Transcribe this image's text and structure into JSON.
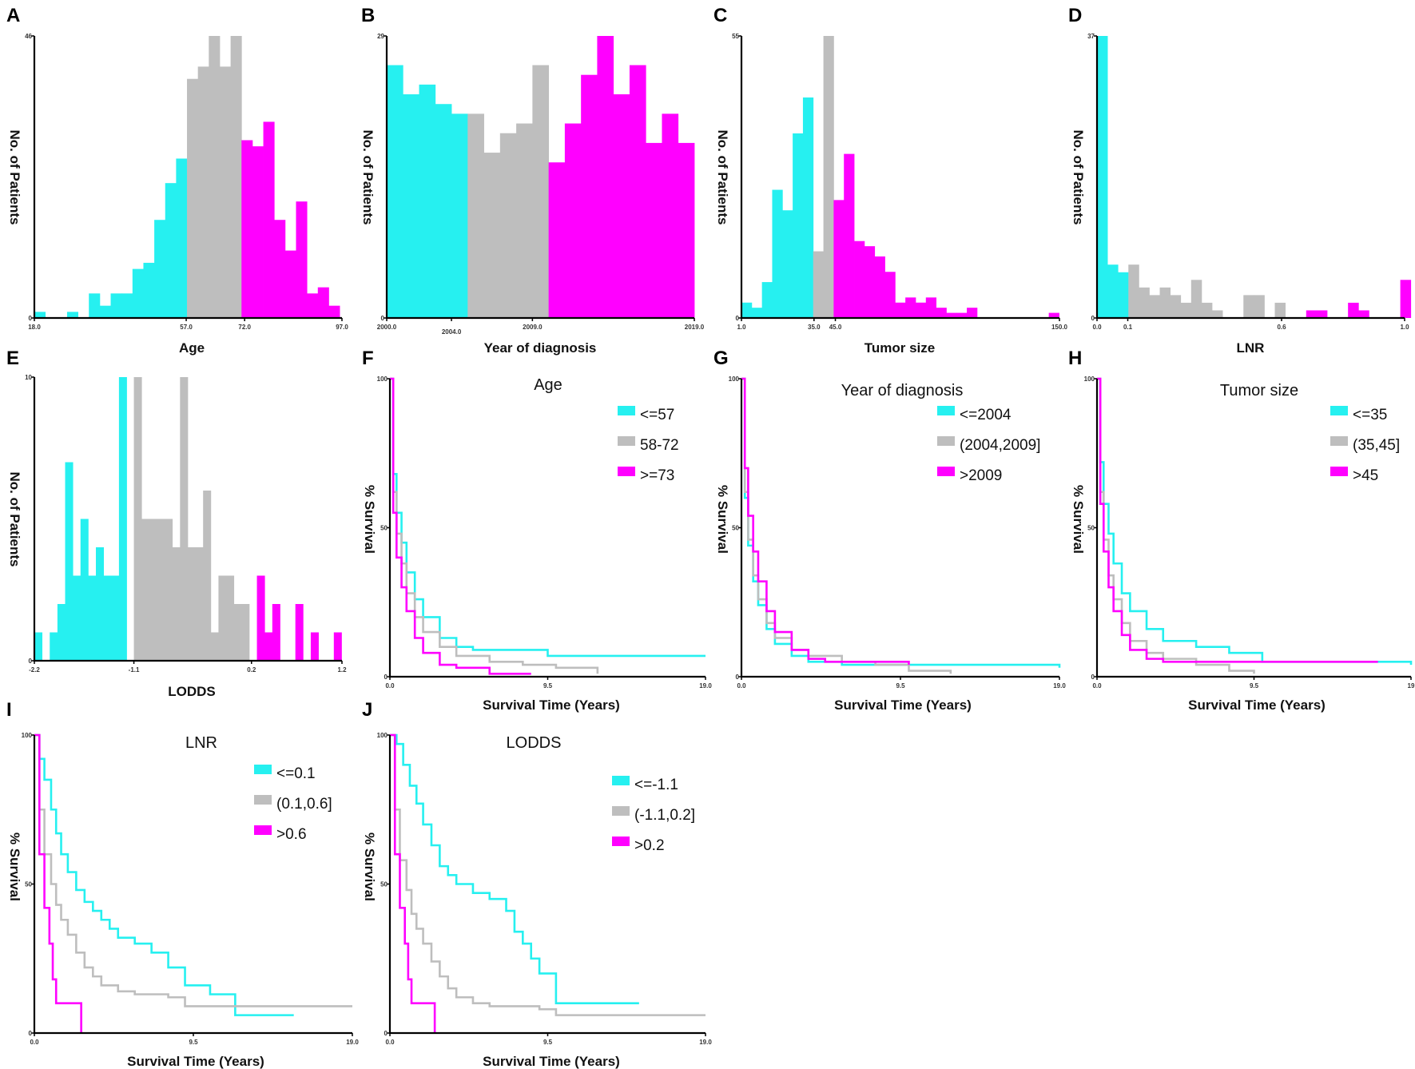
{
  "colors": {
    "group1": "#26F0F0",
    "group2": "#BEBEBE",
    "group3": "#FF00FF",
    "axis": "#000000"
  },
  "chart_data": [
    {
      "type": "bar",
      "panel": "A",
      "xlabel": "Age",
      "ylabel": "No. of Patients",
      "x_ticks": [
        "18.0",
        "57.0",
        "72.0",
        "97.0"
      ],
      "y_ticks": [
        "0",
        "46"
      ],
      "xlim": [
        18,
        97
      ],
      "ylim": [
        0,
        46
      ],
      "bin_width": 2.8,
      "series": [
        {
          "name": "<=57",
          "color_key": "group1",
          "x": [
            18,
            20.8,
            23.6,
            26.4,
            29.2,
            32,
            34.8,
            37.6,
            40.4,
            43.2,
            46,
            48.8,
            51.6,
            54.4
          ],
          "values": [
            1,
            0,
            0,
            1,
            0,
            4,
            2,
            4,
            4,
            8,
            9,
            16,
            22,
            26
          ]
        },
        {
          "name": "58-72",
          "color_key": "group2",
          "x": [
            57.2,
            60,
            62.8,
            65.6,
            68.4
          ],
          "values": [
            39,
            41,
            46,
            41,
            46
          ]
        },
        {
          "name": ">=73",
          "color_key": "group3",
          "x": [
            71.2,
            74,
            76.8,
            79.6,
            82.4,
            85.2,
            88,
            90.8,
            93.6
          ],
          "values": [
            29,
            28,
            32,
            16,
            11,
            19,
            4,
            5,
            2
          ]
        }
      ]
    },
    {
      "type": "bar",
      "panel": "B",
      "xlabel": "Year of diagnosis",
      "ylabel": "No. of Patients",
      "x_ticks": [
        "2000.0",
        "2004.0",
        "2009.0",
        "2019.0"
      ],
      "y_ticks": [
        "0",
        "29"
      ],
      "xlim": [
        2000,
        2019
      ],
      "ylim": [
        0,
        29
      ],
      "bin_width": 1,
      "series": [
        {
          "name": "<=2004",
          "color_key": "group1",
          "x": [
            2000,
            2001,
            2002,
            2003,
            2004
          ],
          "values": [
            26,
            23,
            24,
            22,
            21
          ]
        },
        {
          "name": "(2004,2009]",
          "color_key": "group2",
          "x": [
            2005,
            2006,
            2007,
            2008,
            2009
          ],
          "values": [
            21,
            17,
            19,
            20,
            26
          ]
        },
        {
          "name": ">2009",
          "color_key": "group3",
          "x": [
            2010,
            2011,
            2012,
            2013,
            2014,
            2015,
            2016,
            2017,
            2018
          ],
          "values": [
            16,
            20,
            25,
            29,
            23,
            26,
            18,
            21,
            18
          ]
        }
      ]
    },
    {
      "type": "bar",
      "panel": "C",
      "xlabel": "Tumor size",
      "ylabel": "No. of Patients",
      "x_ticks": [
        "1.0",
        "35.0",
        "45.0",
        "150.0"
      ],
      "y_ticks": [
        "0",
        "55"
      ],
      "xlim": [
        1,
        150
      ],
      "ylim": [
        0,
        55
      ],
      "bin_width": 4.8,
      "series": [
        {
          "name": "<=35",
          "color_key": "group1",
          "x": [
            1,
            5.8,
            10.6,
            15.4,
            20.2,
            25,
            29.8
          ],
          "values": [
            3,
            2,
            7,
            25,
            21,
            36,
            43
          ]
        },
        {
          "name": "(35,45]",
          "color_key": "group2",
          "x": [
            34.6,
            39.4
          ],
          "values": [
            13,
            55
          ]
        },
        {
          "name": ">45",
          "color_key": "group3",
          "x": [
            44.2,
            49,
            53.8,
            58.6,
            63.4,
            68.2,
            73,
            77.8,
            82.6,
            87.4,
            92.2,
            97,
            101.8,
            106.6,
            111.4,
            116.2,
            121,
            125.8,
            130.6,
            135.4,
            140.2,
            145
          ],
          "values": [
            23,
            32,
            15,
            14,
            12,
            9,
            3,
            4,
            3,
            4,
            2,
            1,
            1,
            2,
            0,
            0,
            0,
            0,
            0,
            0,
            0,
            1
          ]
        }
      ]
    },
    {
      "type": "bar",
      "panel": "D",
      "xlabel": "LNR",
      "ylabel": "No. of Patients",
      "x_ticks": [
        "0.0",
        "0.1",
        "0.6",
        "1.0"
      ],
      "y_ticks": [
        "0",
        "37"
      ],
      "xlim": [
        0,
        1
      ],
      "ylim": [
        0,
        37
      ],
      "bin_width": 0.034,
      "series": [
        {
          "name": "<=0.1",
          "color_key": "group1",
          "x": [
            0,
            0.034,
            0.068
          ],
          "values": [
            37,
            7,
            6
          ]
        },
        {
          "name": "(0.1,0.6]",
          "color_key": "group2",
          "x": [
            0.102,
            0.136,
            0.17,
            0.204,
            0.238,
            0.272,
            0.306,
            0.34,
            0.374,
            0.408,
            0.442,
            0.476,
            0.51,
            0.544,
            0.578
          ],
          "values": [
            7,
            4,
            3,
            4,
            3,
            2,
            5,
            2,
            1,
            0,
            0,
            3,
            3,
            0,
            2
          ]
        },
        {
          "name": ">0.6",
          "color_key": "group3",
          "x": [
            0.612,
            0.646,
            0.68,
            0.714,
            0.748,
            0.782,
            0.816,
            0.85,
            0.884,
            0.918,
            0.952,
            0.986
          ],
          "values": [
            0,
            0,
            1,
            1,
            0,
            0,
            2,
            1,
            0,
            0,
            0,
            5
          ]
        }
      ]
    },
    {
      "type": "bar",
      "panel": "E",
      "xlabel": "LODDS",
      "ylabel": "No. of Patients",
      "x_ticks": [
        "-2.2",
        "-1.1",
        "0.2",
        "1.2"
      ],
      "y_ticks": [
        "0",
        "10"
      ],
      "xlim": [
        -2.2,
        1.2
      ],
      "ylim": [
        0,
        10
      ],
      "bin_width": 0.085,
      "series": [
        {
          "name": "<=-1.1",
          "color_key": "group1",
          "x": [
            -2.2,
            -2.115,
            -2.03,
            -1.945,
            -1.86,
            -1.775,
            -1.69,
            -1.605,
            -1.52,
            -1.435,
            -1.35,
            -1.265,
            -1.18
          ],
          "values": [
            1,
            0,
            1,
            2,
            7,
            3,
            5,
            3,
            4,
            3,
            3,
            10,
            0
          ]
        },
        {
          "name": "(-1.1,0.2]",
          "color_key": "group2",
          "x": [
            -1.1,
            -1.015,
            -0.93,
            -0.845,
            -0.76,
            -0.675,
            -0.59,
            -0.505,
            -0.42,
            -0.335,
            -0.25,
            -0.165,
            -0.08,
            0.005,
            0.09,
            0.175
          ],
          "values": [
            10,
            5,
            5,
            5,
            5,
            4,
            10,
            4,
            4,
            6,
            1,
            3,
            3,
            2,
            2,
            0
          ]
        },
        {
          "name": ">0.2",
          "color_key": "group3",
          "x": [
            0.26,
            0.345,
            0.43,
            0.515,
            0.6,
            0.685,
            0.77,
            0.855,
            0.94,
            1.025,
            1.11
          ],
          "values": [
            3,
            1,
            2,
            0,
            0,
            2,
            0,
            1,
            0,
            0,
            1
          ]
        }
      ]
    },
    {
      "type": "line",
      "panel": "F",
      "title": "Age",
      "xlabel": "Survival Time (Years)",
      "ylabel": "% Survival",
      "x_ticks": [
        "0.0",
        "9.5",
        "19.0"
      ],
      "y_ticks": [
        "0",
        "50",
        "100"
      ],
      "xlim": [
        0,
        19
      ],
      "ylim": [
        0,
        100
      ],
      "series": [
        {
          "name": "<=57",
          "color_key": "group1",
          "x": [
            0,
            0.2,
            0.4,
            0.7,
            1,
            1.5,
            2,
            3,
            4,
            5,
            9.5,
            19
          ],
          "y": [
            100,
            68,
            55,
            45,
            35,
            26,
            20,
            13,
            10,
            9,
            7,
            7
          ]
        },
        {
          "name": "58-72",
          "color_key": "group2",
          "x": [
            0,
            0.2,
            0.4,
            0.7,
            1,
            1.5,
            2,
            3,
            4,
            6,
            8,
            10,
            12.5
          ],
          "y": [
            100,
            62,
            48,
            38,
            28,
            20,
            15,
            10,
            7,
            5,
            4,
            3,
            1
          ]
        },
        {
          "name": ">=73",
          "color_key": "group3",
          "x": [
            0,
            0.2,
            0.4,
            0.7,
            1,
            1.5,
            2,
            3,
            4,
            6,
            8.5
          ],
          "y": [
            100,
            55,
            40,
            30,
            22,
            13,
            8,
            4,
            3,
            1,
            1
          ]
        }
      ]
    },
    {
      "type": "line",
      "panel": "G",
      "title": "Year of diagnosis",
      "xlabel": "Survival Time (Years)",
      "ylabel": "% Survival",
      "x_ticks": [
        "0.0",
        "9.5",
        "19.0"
      ],
      "y_ticks": [
        "0",
        "50",
        "100"
      ],
      "xlim": [
        0,
        19
      ],
      "ylim": [
        0,
        100
      ],
      "series": [
        {
          "name": "<=2004",
          "color_key": "group1",
          "x": [
            0,
            0.2,
            0.4,
            0.7,
            1,
            1.5,
            2,
            3,
            4,
            6,
            9,
            19
          ],
          "y": [
            100,
            60,
            44,
            32,
            24,
            16,
            11,
            7,
            5,
            4,
            4,
            3
          ]
        },
        {
          "name": "(2004,2009]",
          "color_key": "group2",
          "x": [
            0,
            0.2,
            0.4,
            0.7,
            1,
            1.5,
            2,
            3,
            4,
            6,
            8,
            10,
            12.5
          ],
          "y": [
            100,
            62,
            46,
            34,
            26,
            18,
            13,
            9,
            7,
            5,
            4,
            2,
            1
          ]
        },
        {
          "name": ">2009",
          "color_key": "group3",
          "x": [
            0,
            0.2,
            0.4,
            0.7,
            1,
            1.5,
            2,
            3,
            4,
            5,
            10
          ],
          "y": [
            100,
            70,
            54,
            42,
            32,
            22,
            15,
            9,
            6,
            5,
            4
          ]
        }
      ]
    },
    {
      "type": "line",
      "panel": "H",
      "title": "Tumor size",
      "xlabel": "Survival Time (Years)",
      "ylabel": "% Survival",
      "x_ticks": [
        "0.0",
        "9.5",
        "19"
      ],
      "y_ticks": [
        "0",
        "50",
        "100"
      ],
      "xlim": [
        0,
        19
      ],
      "ylim": [
        0,
        100
      ],
      "series": [
        {
          "name": "<=35",
          "color_key": "group1",
          "x": [
            0,
            0.2,
            0.4,
            0.7,
            1,
            1.5,
            2,
            3,
            4,
            6,
            8,
            10,
            19
          ],
          "y": [
            100,
            72,
            58,
            48,
            38,
            28,
            22,
            16,
            12,
            10,
            8,
            5,
            4
          ]
        },
        {
          "name": "(35,45]",
          "color_key": "group2",
          "x": [
            0,
            0.2,
            0.4,
            0.7,
            1,
            1.5,
            2,
            3,
            4,
            6,
            8,
            9.5
          ],
          "y": [
            100,
            62,
            46,
            34,
            26,
            18,
            12,
            8,
            6,
            4,
            2,
            1
          ]
        },
        {
          "name": ">45",
          "color_key": "group3",
          "x": [
            0,
            0.2,
            0.4,
            0.7,
            1,
            1.5,
            2,
            3,
            4,
            6,
            9,
            17
          ],
          "y": [
            100,
            58,
            42,
            30,
            22,
            14,
            9,
            6,
            5,
            5,
            5,
            5
          ]
        }
      ]
    },
    {
      "type": "line",
      "panel": "I",
      "title": "LNR",
      "xlabel": "Survival Time (Years)",
      "ylabel": "% Survival",
      "x_ticks": [
        "0.0",
        "9.5",
        "19.0"
      ],
      "y_ticks": [
        "0",
        "50",
        "100"
      ],
      "xlim": [
        0,
        19
      ],
      "ylim": [
        0,
        100
      ],
      "series": [
        {
          "name": "<=0.1",
          "color_key": "group1",
          "x": [
            0,
            0.3,
            0.6,
            1,
            1.3,
            1.6,
            2,
            2.5,
            3,
            3.5,
            4,
            4.5,
            5,
            6,
            7,
            7.5,
            8,
            9,
            10.5,
            12,
            15.5
          ],
          "y": [
            100,
            92,
            85,
            75,
            67,
            60,
            54,
            48,
            44,
            41,
            38,
            35,
            32,
            30,
            27,
            27,
            22,
            16,
            13,
            6,
            6
          ]
        },
        {
          "name": "(0.1,0.6]",
          "color_key": "group2",
          "x": [
            0,
            0.3,
            0.6,
            1,
            1.3,
            1.6,
            2,
            2.5,
            3,
            3.5,
            4,
            5,
            6,
            8,
            9,
            19
          ],
          "y": [
            100,
            75,
            60,
            50,
            43,
            38,
            33,
            27,
            22,
            19,
            16,
            14,
            13,
            12,
            9,
            9
          ]
        },
        {
          "name": ">0.6",
          "color_key": "group3",
          "x": [
            0,
            0.3,
            0.6,
            0.9,
            1.1,
            1.3,
            2.8,
            2.8
          ],
          "y": [
            100,
            60,
            42,
            30,
            18,
            10,
            10,
            0
          ]
        }
      ]
    },
    {
      "type": "line",
      "panel": "J",
      "title": "LODDS",
      "xlabel": "Survival Time (Years)",
      "ylabel": "% Survival",
      "x_ticks": [
        "0.0",
        "9.5",
        "19.0"
      ],
      "y_ticks": [
        "0",
        "50",
        "100"
      ],
      "xlim": [
        0,
        19
      ],
      "ylim": [
        0,
        100
      ],
      "series": [
        {
          "name": "<=-1.1",
          "color_key": "group1",
          "x": [
            0,
            0.4,
            0.8,
            1.2,
            1.6,
            2,
            2.5,
            3,
            3.5,
            4,
            5,
            6,
            7,
            7.5,
            8,
            8.5,
            9,
            10,
            15
          ],
          "y": [
            100,
            97,
            90,
            83,
            77,
            70,
            63,
            56,
            53,
            50,
            47,
            45,
            41,
            34,
            30,
            25,
            20,
            10,
            10
          ]
        },
        {
          "name": "(-1.1,0.2]",
          "color_key": "group2",
          "x": [
            0,
            0.3,
            0.6,
            1,
            1.3,
            1.6,
            2,
            2.5,
            3,
            3.5,
            4,
            5,
            6,
            9,
            10,
            19
          ],
          "y": [
            100,
            75,
            58,
            48,
            40,
            35,
            30,
            24,
            19,
            15,
            12,
            10,
            9,
            8,
            6,
            6
          ]
        },
        {
          "name": ">0.2",
          "color_key": "group3",
          "x": [
            0,
            0.3,
            0.6,
            0.9,
            1.1,
            1.3,
            2.7,
            2.7
          ],
          "y": [
            100,
            60,
            42,
            30,
            18,
            10,
            10,
            0
          ]
        }
      ]
    }
  ]
}
